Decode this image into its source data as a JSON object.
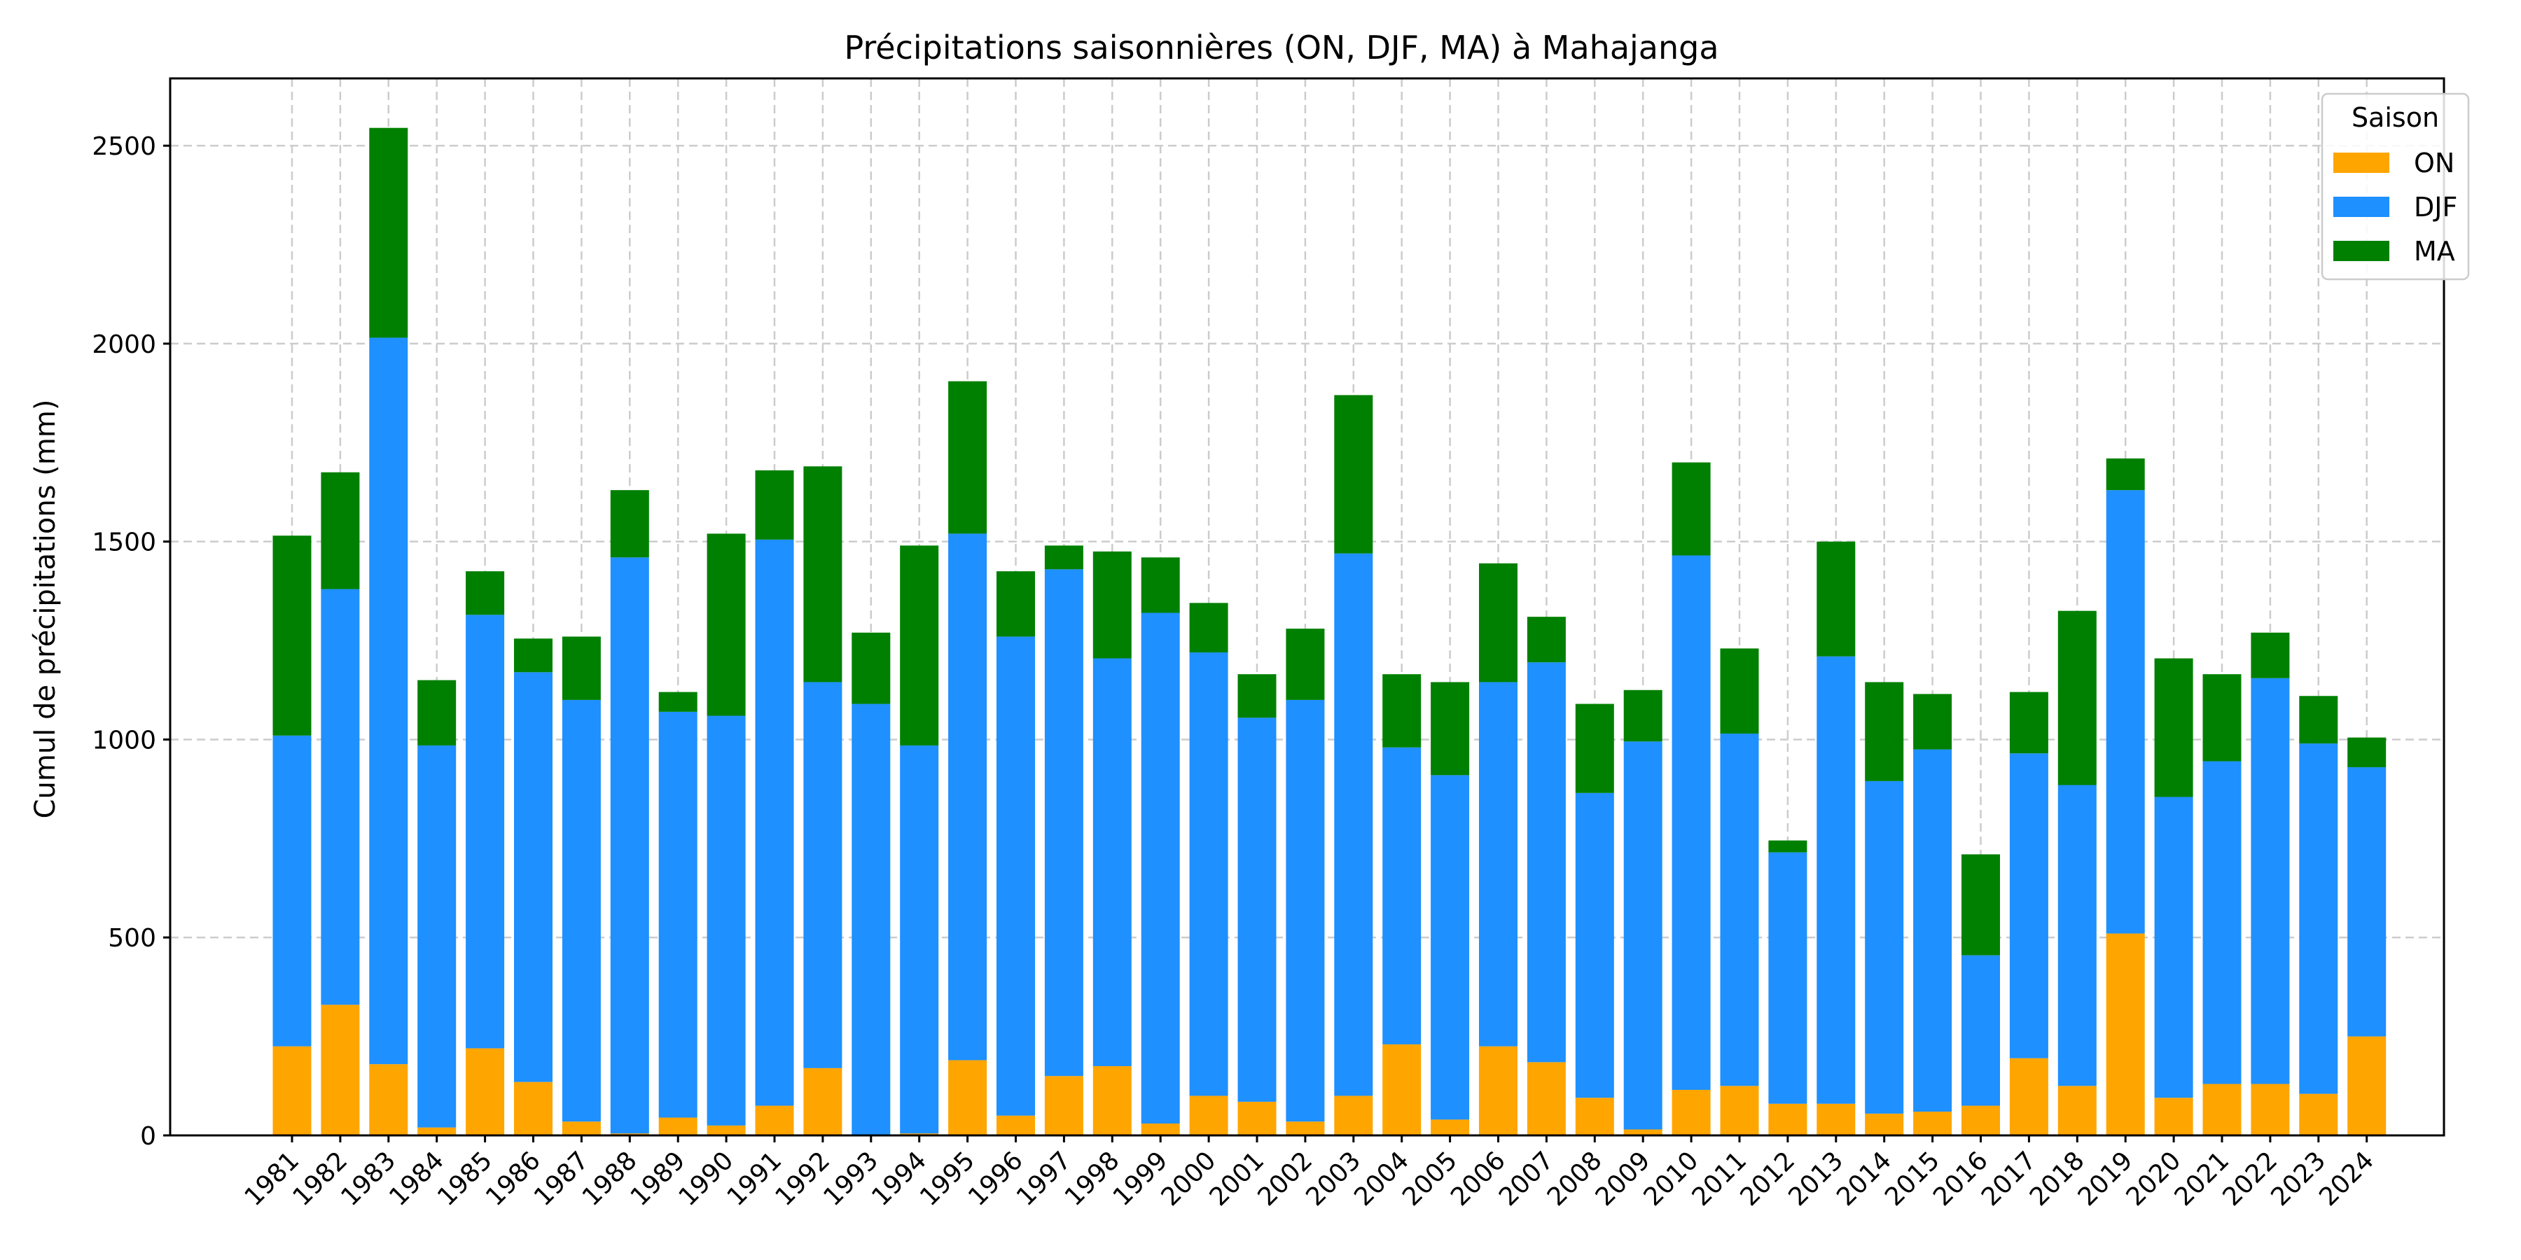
{
  "chart_data": {
    "type": "bar",
    "stacked": true,
    "title": "Précipitations saisonnières (ON, DJF, MA) à Mahajanga",
    "xlabel": "",
    "ylabel": "Cumul de précipitations (mm)",
    "ylim": [
      0,
      2670
    ],
    "yticks": [
      0,
      500,
      1000,
      1500,
      2000,
      2500
    ],
    "grid": true,
    "legend": {
      "title": "Saison",
      "position": "top-right"
    },
    "categories": [
      "1981",
      "1982",
      "1983",
      "1984",
      "1985",
      "1986",
      "1987",
      "1988",
      "1989",
      "1990",
      "1991",
      "1992",
      "1993",
      "1994",
      "1995",
      "1996",
      "1997",
      "1998",
      "1999",
      "2000",
      "2001",
      "2002",
      "2003",
      "2004",
      "2005",
      "2006",
      "2007",
      "2008",
      "2009",
      "2010",
      "2011",
      "2012",
      "2013",
      "2014",
      "2015",
      "2016",
      "2017",
      "2018",
      "2019",
      "2020",
      "2021",
      "2022",
      "2023",
      "2024"
    ],
    "series": [
      {
        "name": "ON",
        "color": "#FFA500",
        "values": [
          225,
          330,
          180,
          20,
          220,
          135,
          35,
          5,
          45,
          25,
          75,
          170,
          0,
          5,
          190,
          50,
          150,
          175,
          30,
          100,
          85,
          35,
          100,
          230,
          40,
          225,
          185,
          95,
          15,
          115,
          125,
          80,
          80,
          55,
          60,
          75,
          195,
          125,
          510,
          95,
          130,
          130,
          105,
          250
        ]
      },
      {
        "name": "DJF",
        "color": "#1E90FF",
        "values": [
          785,
          1050,
          1835,
          965,
          1095,
          1035,
          1065,
          1455,
          1025,
          1035,
          1430,
          975,
          1090,
          980,
          1330,
          1210,
          1280,
          1030,
          1290,
          1120,
          970,
          1065,
          1370,
          750,
          870,
          920,
          1010,
          770,
          980,
          1350,
          890,
          635,
          1130,
          840,
          915,
          380,
          770,
          760,
          1120,
          760,
          815,
          1025,
          885,
          680
        ]
      },
      {
        "name": "MA",
        "color": "#008000",
        "values": [
          505,
          295,
          530,
          165,
          110,
          85,
          160,
          170,
          50,
          460,
          175,
          545,
          180,
          505,
          385,
          165,
          60,
          270,
          140,
          125,
          110,
          180,
          400,
          185,
          235,
          300,
          115,
          225,
          130,
          235,
          215,
          30,
          290,
          250,
          140,
          255,
          155,
          440,
          80,
          350,
          220,
          115,
          120,
          75
        ]
      }
    ]
  }
}
